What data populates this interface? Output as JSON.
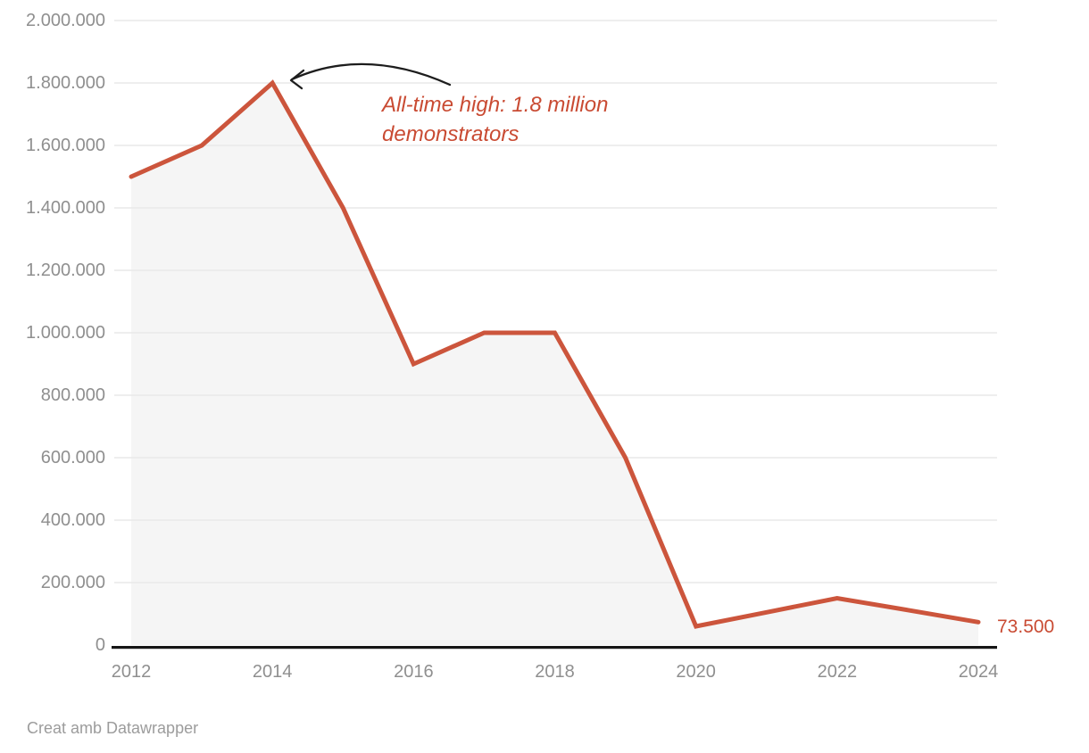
{
  "footer": {
    "text": "Creat amb Datawrapper"
  },
  "chart_data": {
    "type": "area",
    "title": "",
    "series_name": "Demonstrators",
    "x": [
      2012,
      2013,
      2014,
      2015,
      2016,
      2017,
      2018,
      2019,
      2020,
      2021,
      2022,
      2023,
      2024
    ],
    "values": [
      1500000,
      1600000,
      1800000,
      1400000,
      900000,
      1000000,
      1000000,
      600000,
      60000,
      105000,
      150000,
      112000,
      73500
    ],
    "xlim": [
      2012,
      2024
    ],
    "ylim": [
      0,
      2000000
    ],
    "x_ticks": [
      2012,
      2014,
      2016,
      2018,
      2020,
      2022,
      2024
    ],
    "x_tick_labels": [
      "2012",
      "2014",
      "2016",
      "2018",
      "2020",
      "2022",
      "2024"
    ],
    "y_ticks": [
      0,
      200000,
      400000,
      600000,
      800000,
      1000000,
      1200000,
      1400000,
      1600000,
      1800000,
      2000000
    ],
    "y_tick_labels": [
      "0",
      "200.000",
      "400.000",
      "600.000",
      "800.000",
      "1.000.000",
      "1.200.000",
      "1.400.000",
      "1.600.000",
      "1.800.000",
      "2.000.000"
    ],
    "grid": "horizontal",
    "legend": "none",
    "last_value_label": "73.500",
    "annotation": {
      "line1": "All-time high: 1.8 million",
      "line2": "demonstrators",
      "anchor_x": 2014,
      "anchor_y": 1800000
    },
    "colors": {
      "line": "#cc553c",
      "area_fill": "#f5f5f5",
      "accent_text": "#c94b33",
      "grid": "#e9e9e9",
      "axis_labels": "#8f8f8f",
      "axis_line": "#161616",
      "footer_text": "#9c9c9c",
      "arrow": "#1d1d1d"
    }
  }
}
